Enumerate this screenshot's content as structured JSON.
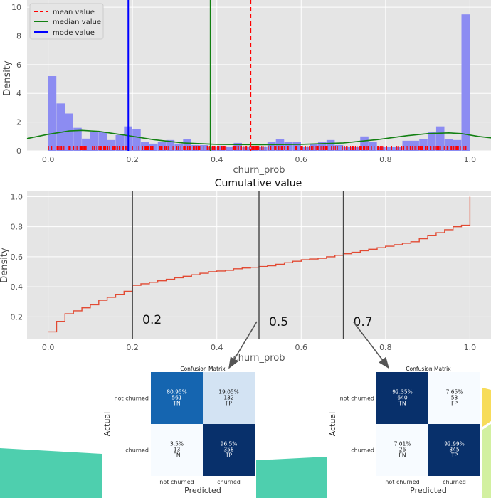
{
  "colors": {
    "panel_bg": "#e5e5e5",
    "grid": "#ffffff",
    "hist": "#8c8cf2",
    "kde": "#128012",
    "rug": "#ff0000",
    "mean": "#ff0000",
    "median": "#128012",
    "mode": "#0000ff",
    "step": "#e24a33",
    "threshold": "#444444",
    "cm_dark": "#08306b",
    "cm_mid": "#1565b0",
    "cm_light": "#d3e3f3",
    "cm_lightest": "#f7fbff",
    "teal": "#4ecfae",
    "yellow": "#f7dc5a",
    "lime": "#d2f0a0"
  },
  "chart_data": [
    {
      "type": "histogram",
      "title": "",
      "xlabel": "churn_prob",
      "ylabel": "Density",
      "xlim": [
        -0.05,
        1.05
      ],
      "ylim": [
        0,
        10.5
      ],
      "xticks": [
        "0.0",
        "0.2",
        "0.4",
        "0.6",
        "0.8",
        "1.0"
      ],
      "yticks": [
        "0",
        "2",
        "4",
        "6",
        "8",
        "10"
      ],
      "bin_width": 0.02,
      "bins": [
        {
          "x0": 0.0,
          "h": 5.2
        },
        {
          "x0": 0.02,
          "h": 3.3
        },
        {
          "x0": 0.04,
          "h": 2.6
        },
        {
          "x0": 0.06,
          "h": 1.6
        },
        {
          "x0": 0.08,
          "h": 0.85
        },
        {
          "x0": 0.1,
          "h": 1.3
        },
        {
          "x0": 0.12,
          "h": 1.3
        },
        {
          "x0": 0.14,
          "h": 0.75
        },
        {
          "x0": 0.16,
          "h": 1.1
        },
        {
          "x0": 0.18,
          "h": 1.7
        },
        {
          "x0": 0.2,
          "h": 1.5
        },
        {
          "x0": 0.22,
          "h": 0.6
        },
        {
          "x0": 0.24,
          "h": 0.5
        },
        {
          "x0": 0.26,
          "h": 0.6
        },
        {
          "x0": 0.28,
          "h": 0.75
        },
        {
          "x0": 0.3,
          "h": 0.5
        },
        {
          "x0": 0.32,
          "h": 0.8
        },
        {
          "x0": 0.34,
          "h": 0.4
        },
        {
          "x0": 0.36,
          "h": 0.4
        },
        {
          "x0": 0.38,
          "h": 0.3
        },
        {
          "x0": 0.4,
          "h": 0.35
        },
        {
          "x0": 0.42,
          "h": 0.3
        },
        {
          "x0": 0.44,
          "h": 0.55
        },
        {
          "x0": 0.46,
          "h": 0.3
        },
        {
          "x0": 0.48,
          "h": 0.3
        },
        {
          "x0": 0.5,
          "h": 0.3
        },
        {
          "x0": 0.52,
          "h": 0.6
        },
        {
          "x0": 0.54,
          "h": 0.8
        },
        {
          "x0": 0.56,
          "h": 0.6
        },
        {
          "x0": 0.58,
          "h": 0.6
        },
        {
          "x0": 0.6,
          "h": 0.3
        },
        {
          "x0": 0.62,
          "h": 0.5
        },
        {
          "x0": 0.64,
          "h": 0.6
        },
        {
          "x0": 0.66,
          "h": 0.75
        },
        {
          "x0": 0.68,
          "h": 0.4
        },
        {
          "x0": 0.7,
          "h": 0.3
        },
        {
          "x0": 0.72,
          "h": 0.3
        },
        {
          "x0": 0.74,
          "h": 1.0
        },
        {
          "x0": 0.76,
          "h": 0.6
        },
        {
          "x0": 0.78,
          "h": 0.3
        },
        {
          "x0": 0.8,
          "h": 0.3
        },
        {
          "x0": 0.82,
          "h": 0.3
        },
        {
          "x0": 0.84,
          "h": 0.7
        },
        {
          "x0": 0.86,
          "h": 0.7
        },
        {
          "x0": 0.88,
          "h": 0.8
        },
        {
          "x0": 0.9,
          "h": 1.3
        },
        {
          "x0": 0.92,
          "h": 1.7
        },
        {
          "x0": 0.94,
          "h": 0.8
        },
        {
          "x0": 0.96,
          "h": 0.75
        },
        {
          "x0": 0.98,
          "h": 9.5
        }
      ],
      "kde": {
        "x": [
          -0.05,
          0.0,
          0.05,
          0.08,
          0.12,
          0.18,
          0.25,
          0.32,
          0.4,
          0.5,
          0.6,
          0.7,
          0.78,
          0.85,
          0.9,
          0.95,
          0.98,
          1.02,
          1.05
        ],
        "y": [
          0.85,
          1.15,
          1.38,
          1.42,
          1.35,
          1.1,
          0.78,
          0.55,
          0.45,
          0.42,
          0.45,
          0.55,
          0.78,
          1.05,
          1.2,
          1.25,
          1.2,
          1.0,
          0.9
        ]
      },
      "vlines": [
        {
          "name": "mean value",
          "x": 0.48,
          "style": "dashed",
          "color_key": "mean"
        },
        {
          "name": "median value",
          "x": 0.385,
          "style": "solid",
          "color_key": "median"
        },
        {
          "name": "mode value",
          "x": 0.19,
          "style": "solid",
          "color_key": "mode"
        }
      ],
      "legend": [
        "mean value",
        "median value",
        "mode value"
      ],
      "legend_position": "top-left",
      "rug": true
    },
    {
      "type": "line",
      "title": "Cumulative value",
      "xlabel": "churn_prob",
      "ylabel": "Density",
      "xlim": [
        -0.05,
        1.05
      ],
      "ylim": [
        0.05,
        1.04
      ],
      "xticks": [
        "0.0",
        "0.2",
        "0.4",
        "0.6",
        "0.8",
        "1.0"
      ],
      "yticks": [
        "0.2",
        "0.4",
        "0.6",
        "0.8",
        "1.0"
      ],
      "step": {
        "x": [
          0.0,
          0.02,
          0.04,
          0.06,
          0.08,
          0.1,
          0.12,
          0.14,
          0.16,
          0.18,
          0.2,
          0.22,
          0.24,
          0.26,
          0.28,
          0.3,
          0.32,
          0.34,
          0.36,
          0.38,
          0.4,
          0.42,
          0.44,
          0.46,
          0.48,
          0.5,
          0.52,
          0.54,
          0.56,
          0.58,
          0.6,
          0.62,
          0.64,
          0.66,
          0.68,
          0.7,
          0.72,
          0.74,
          0.76,
          0.78,
          0.8,
          0.82,
          0.84,
          0.86,
          0.88,
          0.9,
          0.92,
          0.94,
          0.96,
          0.98,
          1.0
        ],
        "y": [
          0.1,
          0.17,
          0.22,
          0.24,
          0.26,
          0.28,
          0.31,
          0.33,
          0.35,
          0.37,
          0.41,
          0.42,
          0.43,
          0.44,
          0.45,
          0.46,
          0.47,
          0.48,
          0.49,
          0.5,
          0.505,
          0.51,
          0.52,
          0.525,
          0.53,
          0.535,
          0.54,
          0.55,
          0.56,
          0.57,
          0.58,
          0.585,
          0.59,
          0.6,
          0.61,
          0.62,
          0.63,
          0.64,
          0.65,
          0.66,
          0.67,
          0.68,
          0.69,
          0.7,
          0.72,
          0.74,
          0.76,
          0.78,
          0.8,
          0.81,
          1.0
        ]
      },
      "thresholds": [
        {
          "x": 0.2,
          "label": "0.2"
        },
        {
          "x": 0.5,
          "label": "0.5"
        },
        {
          "x": 0.7,
          "label": "0.7"
        }
      ]
    },
    {
      "type": "heatmap",
      "title": "Confusion Matrix",
      "threshold": "0.5",
      "xlabel": "Predicted",
      "ylabel": "Actual",
      "row_labels": [
        "not churned",
        "churned"
      ],
      "col_labels": [
        "not churned",
        "churned"
      ],
      "cells": [
        [
          {
            "pct": "80.95%",
            "n": "561",
            "tag": "TN",
            "shade": "cm_mid"
          },
          {
            "pct": "19.05%",
            "n": "132",
            "tag": "FP",
            "shade": "cm_light"
          }
        ],
        [
          {
            "pct": "3.5%",
            "n": "13",
            "tag": "FN",
            "shade": "cm_lightest"
          },
          {
            "pct": "96.5%",
            "n": "358",
            "tag": "TP",
            "shade": "cm_dark"
          }
        ]
      ]
    },
    {
      "type": "heatmap",
      "title": "Confusion Matrix",
      "threshold": "0.7",
      "xlabel": "Predicted",
      "ylabel": "Actual",
      "row_labels": [
        "not churned",
        "churned"
      ],
      "col_labels": [
        "not churned",
        "churned"
      ],
      "cells": [
        [
          {
            "pct": "92.35%",
            "n": "640",
            "tag": "TN",
            "shade": "cm_dark"
          },
          {
            "pct": "7.65%",
            "n": "53",
            "tag": "FP",
            "shade": "cm_lightest"
          }
        ],
        [
          {
            "pct": "7.01%",
            "n": "26",
            "tag": "FN",
            "shade": "cm_lightest"
          },
          {
            "pct": "92.99%",
            "n": "345",
            "tag": "TP",
            "shade": "cm_dark"
          }
        ]
      ]
    }
  ]
}
